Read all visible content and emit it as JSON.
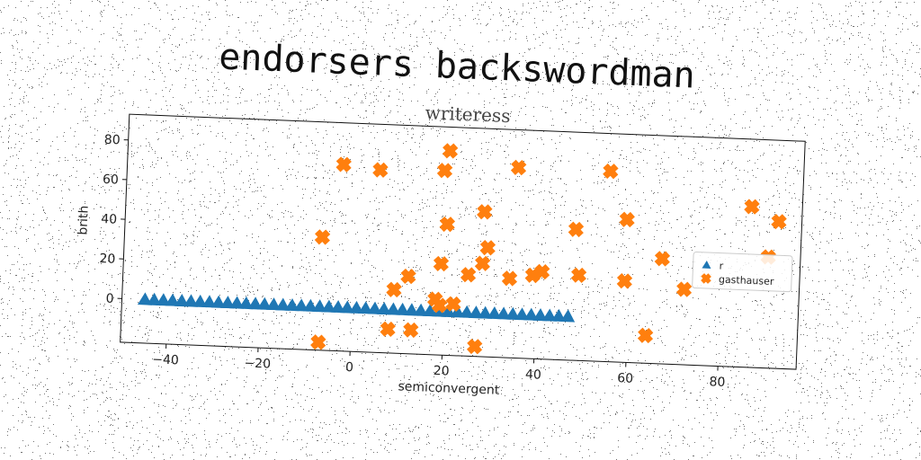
{
  "figure": {
    "suptitle": "endorsers backswordman",
    "background": "#ffffff"
  },
  "chart_data": {
    "type": "scatter",
    "title": "writeress",
    "xlabel": "semiconvergent",
    "ylabel": "brith",
    "xlim": [
      -50,
      97
    ],
    "ylim": [
      -22,
      93
    ],
    "xticks": [
      -40,
      -20,
      0,
      20,
      40,
      60,
      80
    ],
    "yticks": [
      0,
      20,
      40,
      60,
      80
    ],
    "grid": false,
    "legend": {
      "placement": "center-right"
    },
    "series": [
      {
        "name": "r",
        "marker": "triangle-up",
        "color": "#1f77b4",
        "x": [
          -45,
          -43,
          -41,
          -39,
          -37,
          -35,
          -33,
          -31,
          -29,
          -27,
          -25,
          -23,
          -21,
          -19,
          -17,
          -15,
          -13,
          -11,
          -9,
          -7,
          -5,
          -3,
          -1,
          1,
          3,
          5,
          7,
          9,
          11,
          13,
          15,
          17,
          19,
          21,
          23,
          25,
          27,
          29,
          31,
          33,
          35,
          37,
          39,
          41,
          43,
          45,
          47
        ],
        "y": [
          0,
          0,
          0,
          0,
          0,
          0,
          0,
          0,
          0,
          0,
          0,
          0,
          0,
          0,
          0,
          0,
          0,
          0,
          0,
          0,
          0,
          0,
          0,
          0,
          0,
          0,
          0,
          0,
          0,
          0,
          0,
          0,
          0,
          0,
          0,
          0,
          0,
          0,
          0,
          0,
          0,
          0,
          0,
          0,
          0,
          0,
          0
        ]
      },
      {
        "name": "gasthauser",
        "marker": "x-filled",
        "color": "#ff7f0e",
        "x": [
          -3,
          5,
          19,
          20,
          -7,
          20,
          28,
          35,
          55,
          59,
          48,
          86,
          92,
          90,
          29,
          28,
          19,
          25,
          67,
          12,
          39,
          41,
          49,
          59,
          72,
          34,
          9,
          18,
          19,
          22,
          8,
          13,
          64,
          -7,
          27
        ],
        "y": [
          72,
          70,
          71,
          81,
          35,
          44,
          51,
          74,
          74,
          50,
          44,
          59,
          52,
          34,
          33,
          25,
          24,
          19,
          31,
          17,
          20,
          22,
          21,
          19,
          16,
          18,
          10,
          6,
          3,
          4,
          -10,
          -10,
          -8,
          -18,
          -17
        ]
      }
    ]
  }
}
